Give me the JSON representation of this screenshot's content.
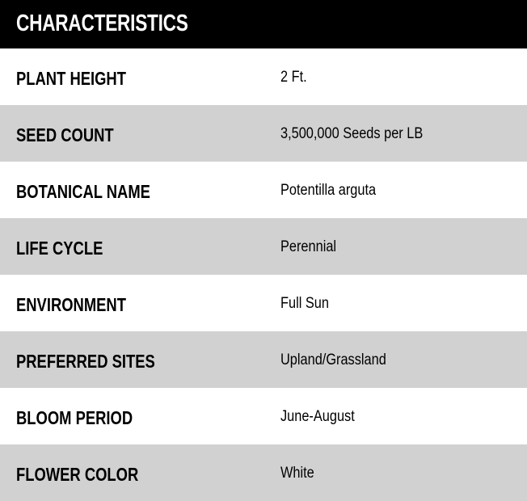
{
  "title": "CHARACTERISTICS",
  "rows": [
    {
      "label": "PLANT HEIGHT",
      "value": "2 Ft."
    },
    {
      "label": "SEED COUNT",
      "value": "3,500,000 Seeds per LB"
    },
    {
      "label": "BOTANICAL NAME",
      "value": "Potentilla arguta"
    },
    {
      "label": "LIFE CYCLE",
      "value": "Perennial"
    },
    {
      "label": "ENVIRONMENT",
      "value": "Full Sun"
    },
    {
      "label": "PREFERRED SITES",
      "value": "Upland/Grassland"
    },
    {
      "label": "BLOOM PERIOD",
      "value": "June-August"
    },
    {
      "label": "FLOWER COLOR",
      "value": "White"
    }
  ],
  "colors": {
    "header_bg": "#000000",
    "alt_row_bg": "#d1d1d1"
  }
}
